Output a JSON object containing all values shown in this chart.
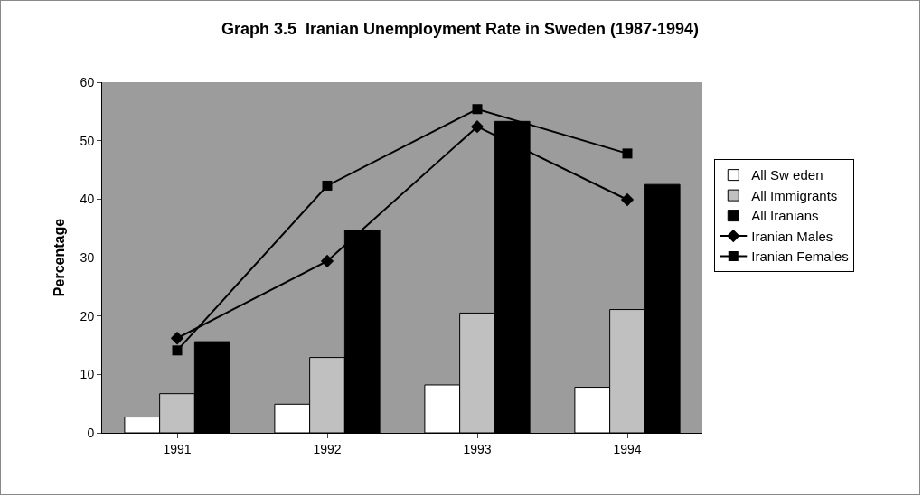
{
  "chart_data": {
    "type": "bar",
    "title": "Graph 3.5  Iranian Unemployment Rate in Sweden (1987-1994)",
    "ylabel": "Percentage",
    "categories": [
      "1991",
      "1992",
      "1993",
      "1994"
    ],
    "series": [
      {
        "name": "All Sw eden",
        "color": "#ffffff",
        "values": [
          2.7,
          4.9,
          8.2,
          7.8
        ]
      },
      {
        "name": "All Immigrants",
        "color": "#c0c0c0",
        "values": [
          6.7,
          12.9,
          20.5,
          21.1
        ]
      },
      {
        "name": "All Iranians",
        "color": "#000000",
        "values": [
          15.6,
          34.7,
          53.3,
          42.5
        ]
      },
      {
        "name": "Iranian Males",
        "type": "line",
        "color": "#000000",
        "marker": "diamond",
        "values": [
          16.2,
          29.4,
          52.4,
          39.9
        ]
      },
      {
        "name": "Iranian Females",
        "type": "line",
        "color": "#000000",
        "marker": "square",
        "values": [
          14.1,
          42.3,
          55.4,
          47.8
        ]
      }
    ],
    "ylim": [
      0,
      60
    ],
    "yticks": [
      0,
      10,
      20,
      30,
      40,
      50,
      60
    ],
    "grid": false,
    "legend": "right"
  }
}
